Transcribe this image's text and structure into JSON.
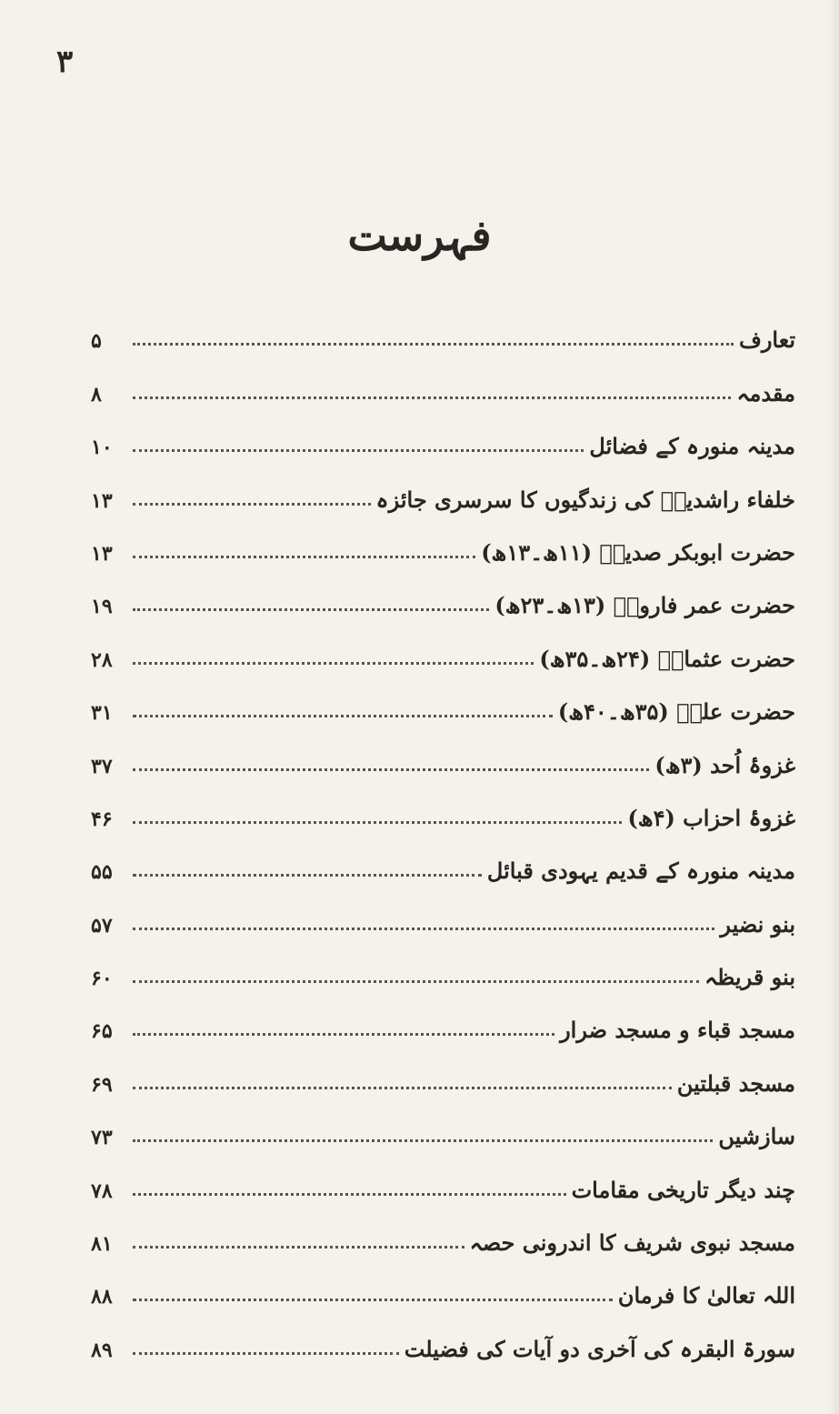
{
  "page_number": "۳",
  "title": "فہرست",
  "entries": [
    {
      "title": "تعارف",
      "page": "۵"
    },
    {
      "title": "مقدمہ",
      "page": "۸"
    },
    {
      "title": "مدینہ منورہ کے فضائل",
      "page": "۱۰"
    },
    {
      "title": "خلفاء راشدینؓ کی زندگیوں کا سرسری جائزہ",
      "page": "۱۳"
    },
    {
      "title": "حضرت ابوبکر صدیقؓ (۱۱ھ۔۱۳ھ)",
      "page": "۱۳"
    },
    {
      "title": "حضرت عمر فاروقؓ (۱۳ھ۔۲۳ھ)",
      "page": "۱۹"
    },
    {
      "title": "حضرت عثمانؓ (۲۴ھ۔۳۵ھ)",
      "page": "۲۸"
    },
    {
      "title": "حضرت علیؓ (۳۵ھ۔۴۰ھ)",
      "page": "۳۱"
    },
    {
      "title": "غزوۂ اُحد (۳ھ)",
      "page": "۳۷"
    },
    {
      "title": "غزوۂ احزاب (۴ھ)",
      "page": "۴۶"
    },
    {
      "title": "مدینہ منورہ کے قدیم یہودی قبائل",
      "page": "۵۵"
    },
    {
      "title": "بنو نضیر",
      "page": "۵۷"
    },
    {
      "title": "بنو قریظہ",
      "page": "۶۰"
    },
    {
      "title": "مسجد قباء و مسجد ضرار",
      "page": "۶۵"
    },
    {
      "title": "مسجد قبلتین",
      "page": "۶۹"
    },
    {
      "title": "سازشیں",
      "page": "۷۳"
    },
    {
      "title": "چند دیگر تاریخی مقامات",
      "page": "۷۸"
    },
    {
      "title": "مسجد نبوی شریف کا اندرونی حصہ",
      "page": "۸۱"
    },
    {
      "title": "اللہ تعالیٰ کا فرمان",
      "page": "۸۸"
    },
    {
      "title": "سورۃ البقرہ کی آخری دو آیات کی فضیلت",
      "page": "۸۹"
    }
  ]
}
